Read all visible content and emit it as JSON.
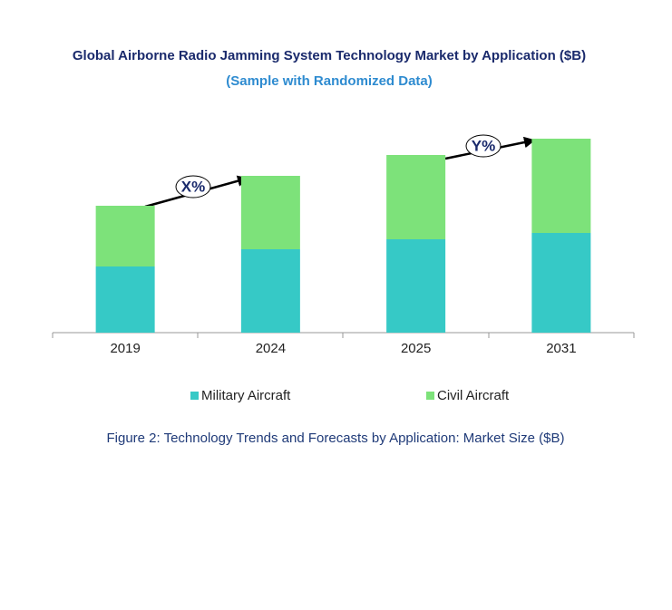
{
  "chart_data": {
    "type": "stacked-bar",
    "title": "Global Airborne Radio Jamming System Technology Market by Application ($B)",
    "subtitle": "(Sample with Randomized Data)",
    "caption": "Figure 2: Technology  Trends  and Forecasts by Application: Market Size ($B)",
    "categories": [
      "2019",
      "2024",
      "2025",
      "2031"
    ],
    "series": [
      {
        "name": "Military Aircraft",
        "color": "#36c9c6",
        "values": [
          7.3,
          9.2,
          10.3,
          11.0
        ]
      },
      {
        "name": "Civil Aircraft",
        "color": "#7de27a",
        "values": [
          6.7,
          8.1,
          9.3,
          10.4
        ]
      }
    ],
    "ylim": [
      0,
      22
    ],
    "annotations": [
      "X%",
      "Y%"
    ],
    "legend": "bottom"
  }
}
